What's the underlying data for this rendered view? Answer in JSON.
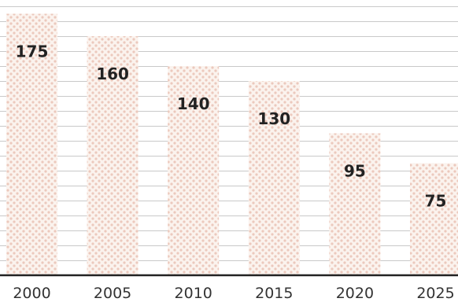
{
  "chart_data": {
    "type": "bar",
    "categories": [
      "2000",
      "2005",
      "2010",
      "2015",
      "2020",
      "2025"
    ],
    "values": [
      175,
      160,
      140,
      130,
      95,
      75
    ],
    "data_labels": [
      "175",
      "160",
      "140",
      "130",
      "95",
      "75"
    ],
    "title": "",
    "xlabel": "",
    "ylabel": "",
    "ylim": [
      0,
      180
    ],
    "grid": true,
    "legend": "none",
    "colors": {
      "bar_fill": "#fbf3ee",
      "bar_dots": "#ecc9bd",
      "grid": "#c9c9c9",
      "axis": "#222222",
      "text": "#222222"
    }
  }
}
